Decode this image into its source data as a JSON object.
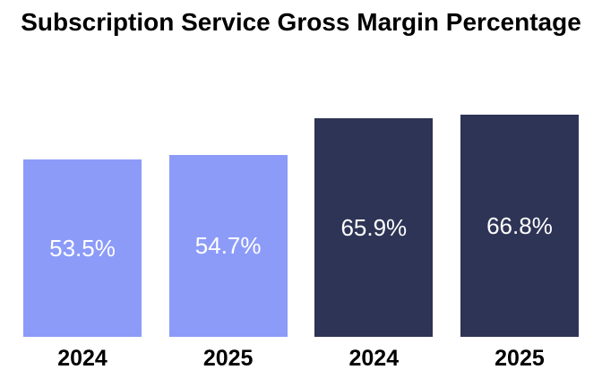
{
  "chart": {
    "title": "Subscription Service Gross Margin Percentage"
  },
  "chart_data": {
    "type": "bar",
    "title": "Subscription Service Gross Margin Percentage",
    "xlabel": "",
    "ylabel": "",
    "grid": false,
    "legend": false,
    "categories": [
      "2024",
      "2025",
      "2024",
      "2025"
    ],
    "values": [
      53.5,
      54.7,
      65.9,
      66.8
    ],
    "value_labels": [
      "53.5%",
      "54.7%",
      "65.9%",
      "66.8%"
    ],
    "value_label_color": "#FFFFFF",
    "title_color": "#000000",
    "axis_label_color": "#000000",
    "background_color": "#FFFFFF",
    "bars": [
      {
        "category": "2024",
        "value": 53.5,
        "label": "53.5%",
        "color": "#8C9BF8"
      },
      {
        "category": "2025",
        "value": 54.7,
        "label": "54.7%",
        "color": "#8C9BF8"
      },
      {
        "category": "2024",
        "value": 65.9,
        "label": "65.9%",
        "color": "#2E3455"
      },
      {
        "category": "2025",
        "value": 66.8,
        "label": "66.8%",
        "color": "#2E3455"
      }
    ]
  }
}
